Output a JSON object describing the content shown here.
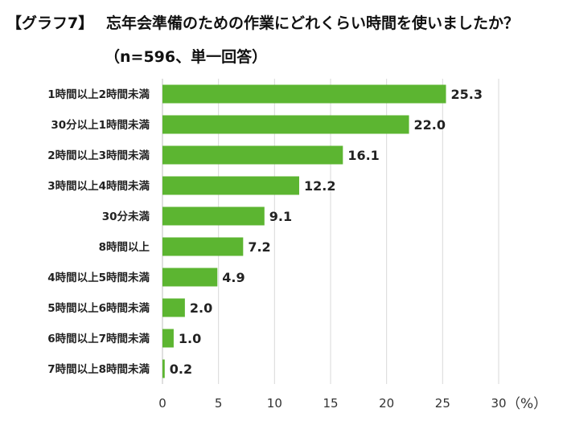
{
  "header": {
    "graph_tag": "【グラフ7】",
    "title": "忘年会準備のための作業にどれくらい時間を使いましたか？",
    "subtitle": "（n=596、単一回答）"
  },
  "chart_data": {
    "type": "bar",
    "orientation": "horizontal",
    "categories": [
      "1時間以上2時間未満",
      "30分以上1時間未満",
      "2時間以上3時間未満",
      "3時間以上4時間未満",
      "30分未満",
      "8時間以上",
      "4時間以上5時間未満",
      "5時間以上6時間未満",
      "6時間以上7時間未満",
      "7時間以上8時間未満"
    ],
    "values": [
      25.3,
      22.0,
      16.1,
      12.2,
      9.1,
      7.2,
      4.9,
      2.0,
      1.0,
      0.2
    ],
    "value_labels": [
      "25.3",
      "22.0",
      "16.1",
      "12.2",
      "9.1",
      "7.2",
      "4.9",
      "2.0",
      "1.0",
      "0.2"
    ],
    "xlim": [
      0,
      30
    ],
    "x_ticks": [
      0,
      5,
      10,
      15,
      20,
      25,
      30
    ],
    "x_unit": "（%）",
    "bar_color": "#5cb531",
    "grid": true
  }
}
